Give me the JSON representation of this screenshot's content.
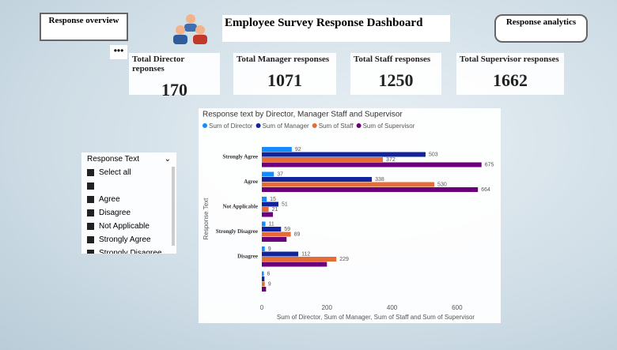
{
  "nav": {
    "left_button": "Response overview",
    "right_button": "Response analytics",
    "title": "Employee Survey Response Dashboard"
  },
  "cards": [
    {
      "label": "Total Director reponses",
      "value": 170
    },
    {
      "label": "Total Manager responses",
      "value": 1071
    },
    {
      "label": "Total Staff responses",
      "value": 1250
    },
    {
      "label": "Total Supervisor responses",
      "value": 1662
    }
  ],
  "slicer": {
    "title": "Response Text",
    "items": [
      "Select all",
      null,
      "Agree",
      "Disagree",
      "Not Applicable",
      "Strongly Agree",
      "Strongly Disagree"
    ]
  },
  "chart_data": {
    "type": "hbar",
    "title": "Response text by Director, Manager Staff and Supervisor",
    "x_label": "Sum of Director, Sum of Manager, Sum of Staff and Sum of Supervisor",
    "y_label": "Response Text",
    "categories": [
      "Strongly Agree",
      "Agree",
      "Not Applicable",
      "Strongly Disagree",
      "Disagree",
      null
    ],
    "series": [
      {
        "name": "Sum of Director",
        "color": "#118DFF",
        "values": [
          92,
          37,
          15,
          11,
          9,
          6
        ],
        "value_labels": [
          "92",
          "37",
          "15",
          "11",
          "9",
          "6"
        ]
      },
      {
        "name": "Sum of Manager",
        "color": "#12239E",
        "values": [
          503,
          338,
          51,
          59,
          112,
          8
        ],
        "value_labels": [
          "503",
          "338",
          "51",
          "59",
          "112",
          null
        ]
      },
      {
        "name": "Sum of Staff",
        "color": "#E66C37",
        "values": [
          372,
          530,
          21,
          89,
          229,
          9
        ],
        "value_labels": [
          "372",
          "530",
          "21",
          "89",
          "229",
          "9"
        ]
      },
      {
        "name": "Sum of Supervisor",
        "color": "#6B007B",
        "values": [
          675,
          664,
          34,
          76,
          200,
          13
        ],
        "value_labels": [
          "675",
          "664",
          null,
          null,
          null,
          null
        ]
      }
    ],
    "xlim": [
      0,
      700
    ],
    "xticks": [
      0,
      200,
      400,
      600
    ],
    "grid": false
  }
}
